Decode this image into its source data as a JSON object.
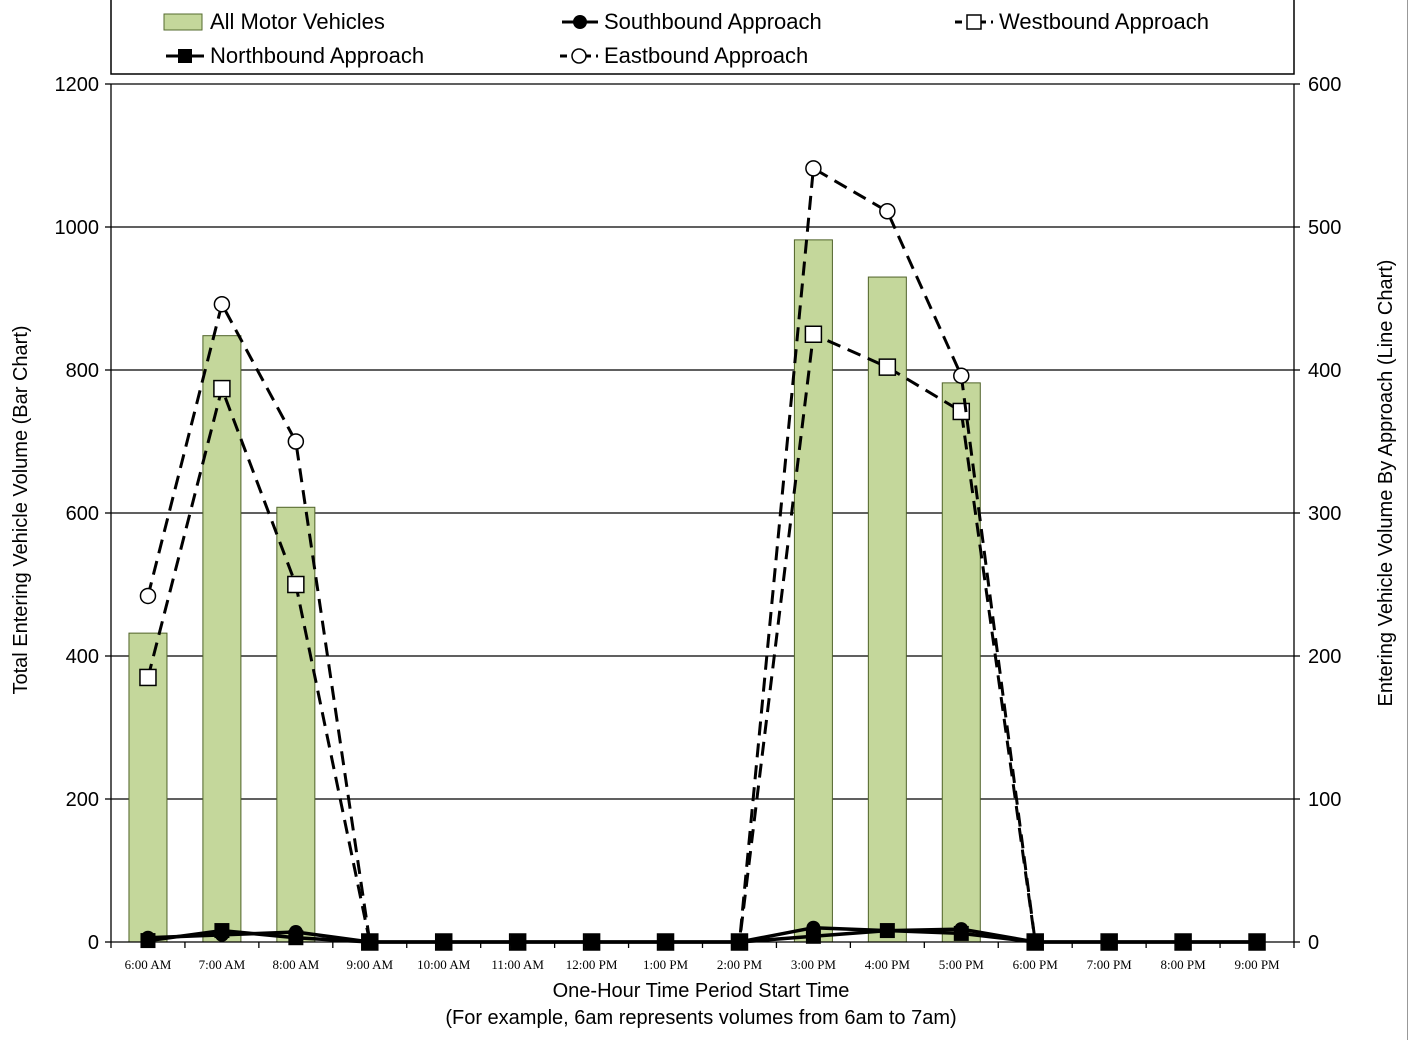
{
  "chart_data": {
    "type": "bar+line",
    "categories": [
      "6:00 AM",
      "7:00 AM",
      "8:00 AM",
      "9:00 AM",
      "10:00 AM",
      "11:00 AM",
      "12:00 PM",
      "1:00 PM",
      "2:00 PM",
      "3:00 PM",
      "4:00 PM",
      "5:00 PM",
      "6:00 PM",
      "7:00 PM",
      "8:00 PM",
      "9:00 PM"
    ],
    "y_left": {
      "label": "Total Entering Vehicle Volume (Bar Chart)",
      "range": [
        0,
        1200
      ],
      "ticks": [
        "0",
        "200",
        "400",
        "600",
        "800",
        "1000",
        "1200"
      ]
    },
    "y_right": {
      "label": "Entering Vehicle Volume By Approach (Line Chart)",
      "range": [
        0,
        600
      ],
      "ticks": [
        "0",
        "100",
        "200",
        "300",
        "400",
        "500",
        "600"
      ]
    },
    "xlabel": "One-Hour Time Period Start Time",
    "xlabel_note": "(For example, 6am represents volumes from 6am to 7am)",
    "grid": true,
    "legend_position": "top",
    "bars": {
      "name": "All Motor Vehicles",
      "axis": "left",
      "color": "#c4d79b",
      "values": [
        432,
        848,
        608,
        0,
        0,
        0,
        0,
        0,
        0,
        982,
        930,
        782,
        0,
        0,
        0,
        0
      ]
    },
    "series": [
      {
        "name": "Southbound Approach",
        "axis": "right",
        "marker": "filled-circle",
        "line": "solid",
        "values": [
          3,
          5,
          7,
          0,
          0,
          0,
          0,
          0,
          0,
          10,
          8,
          9,
          0,
          0,
          0,
          0
        ]
      },
      {
        "name": "Westbound Approach",
        "axis": "right",
        "marker": "open-square",
        "line": "dashed",
        "values": [
          185,
          387,
          250,
          0,
          0,
          0,
          0,
          0,
          0,
          425,
          402,
          371,
          0,
          0,
          0,
          0
        ]
      },
      {
        "name": "Northbound Approach",
        "axis": "right",
        "marker": "filled-square",
        "line": "solid",
        "values": [
          1,
          8,
          3,
          0,
          0,
          0,
          0,
          0,
          0,
          4,
          8,
          6,
          0,
          0,
          0,
          0
        ]
      },
      {
        "name": "Eastbound Approach",
        "axis": "right",
        "marker": "open-circle",
        "line": "dashed",
        "values": [
          242,
          446,
          350,
          0,
          0,
          0,
          0,
          0,
          0,
          541,
          511,
          396,
          0,
          0,
          0,
          0
        ]
      }
    ]
  }
}
